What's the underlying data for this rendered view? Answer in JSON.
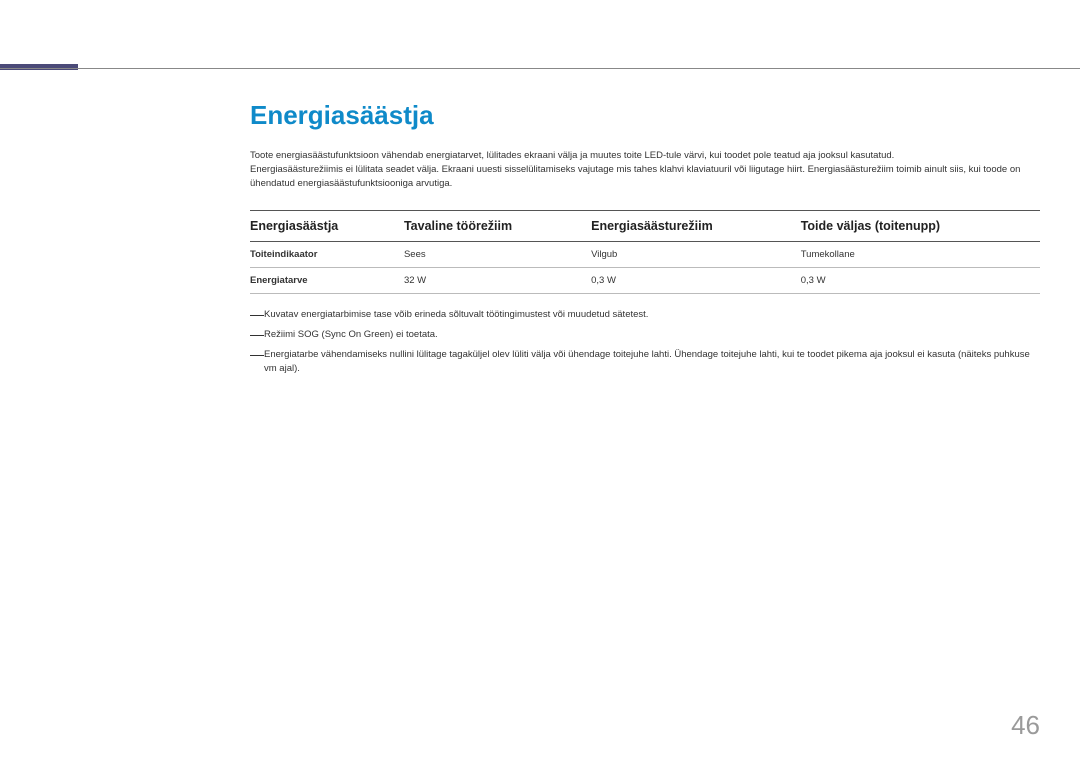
{
  "colors": {
    "accent_bar": "#4b4a78",
    "heading": "#0f8ac9",
    "rule": "#888888",
    "text": "#333333",
    "page_num": "#9a9a9a",
    "row_border": "#bbbbbb",
    "header_border": "#555555",
    "background": "#ffffff"
  },
  "heading": "Energiasäästja",
  "intro_lines": [
    "Toote energiasäästufunktsioon vähendab energiatarvet, lülitades ekraani välja ja muutes toite LED-tule värvi, kui toodet pole teatud aja jooksul kasutatud.",
    "Energiasäästurežiimis ei lülitata seadet välja. Ekraani uuesti sisselülitamiseks vajutage mis tahes klahvi klaviatuuril või liigutage hiirt. Energiasäästurežiim toimib ainult siis, kui toode on ühendatud energiasäästufunktsiooniga arvutiga."
  ],
  "table": {
    "columns": [
      "Energiasäästja",
      "Tavaline töörežiim",
      "Energiasäästurežiim",
      "Toide väljas (toitenupp)"
    ],
    "rows": [
      {
        "label": "Toiteindikaator",
        "cells": [
          "Sees",
          "Vilgub",
          "Tumekollane"
        ]
      },
      {
        "label": "Energiatarve",
        "cells": [
          "32 W",
          "0,3 W",
          "0,3 W"
        ]
      }
    ],
    "col_widths": [
      "25%",
      "25%",
      "25%",
      "25%"
    ],
    "header_fontsize": 12.5,
    "cell_fontsize": 9.5
  },
  "notes": [
    "Kuvatav energiatarbimise tase võib erineda sõltuvalt töötingimustest või muudetud sätetest.",
    "Režiimi SOG (Sync On Green) ei toetata.",
    "Energiatarbe vähendamiseks nullini lülitage tagaküljel olev lüliti välja või ühendage toitejuhe lahti. Ühendage toitejuhe lahti, kui te toodet pikema aja jooksul ei kasuta (näiteks puhkuse vm ajal)."
  ],
  "page_number": "46"
}
